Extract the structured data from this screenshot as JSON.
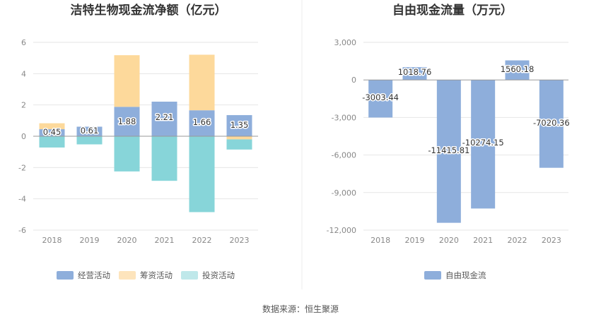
{
  "source_note": "数据来源：恒生聚源",
  "chart_data": [
    {
      "type": "bar",
      "stacked": true,
      "title": "洁特生物现金流净额（亿元）",
      "categories": [
        "2018",
        "2019",
        "2020",
        "2021",
        "2022",
        "2023"
      ],
      "ylim": [
        -6,
        6
      ],
      "yticks": [
        "6",
        "4",
        "2",
        "0",
        "-2",
        "-4",
        "-6"
      ],
      "ytick_values": [
        6,
        4,
        2,
        0,
        -2,
        -4,
        -6
      ],
      "grid": true,
      "legend_position": "bottom",
      "series": [
        {
          "name": "经营活动",
          "color": "#8eaedb",
          "values": [
            0.45,
            0.61,
            1.88,
            2.21,
            1.66,
            1.35
          ]
        },
        {
          "name": "筹资活动",
          "color": "#fdd99b",
          "values": [
            0.38,
            0.0,
            3.3,
            0.0,
            3.55,
            -0.2
          ]
        },
        {
          "name": "投资活动",
          "color": "#87d5d9",
          "values": [
            -0.72,
            -0.52,
            -2.25,
            -2.85,
            -4.85,
            -0.65
          ]
        }
      ],
      "data_labels": [
        "0.45",
        "0.61",
        "1.88",
        "2.21",
        "1.66",
        "1.35"
      ]
    },
    {
      "type": "bar",
      "title": "自由现金流量（万元）",
      "categories": [
        "2018",
        "2019",
        "2020",
        "2021",
        "2022",
        "2023"
      ],
      "ylim": [
        -12000,
        3000
      ],
      "yticks": [
        "3,000",
        "0",
        "-3,000",
        "-6,000",
        "-9,000",
        "-12,000"
      ],
      "ytick_values": [
        3000,
        0,
        -3000,
        -6000,
        -9000,
        -12000
      ],
      "grid": true,
      "legend_position": "bottom",
      "series": [
        {
          "name": "自由现金流",
          "color": "#8eaedb",
          "values": [
            -3003.44,
            1018.76,
            -11415.81,
            -10274.15,
            1560.18,
            -7020.36
          ]
        }
      ],
      "data_labels": [
        "-3003.44",
        "1018.76",
        "-11415.81",
        "-10274.15",
        "1560.18",
        "-7020.36"
      ]
    }
  ]
}
